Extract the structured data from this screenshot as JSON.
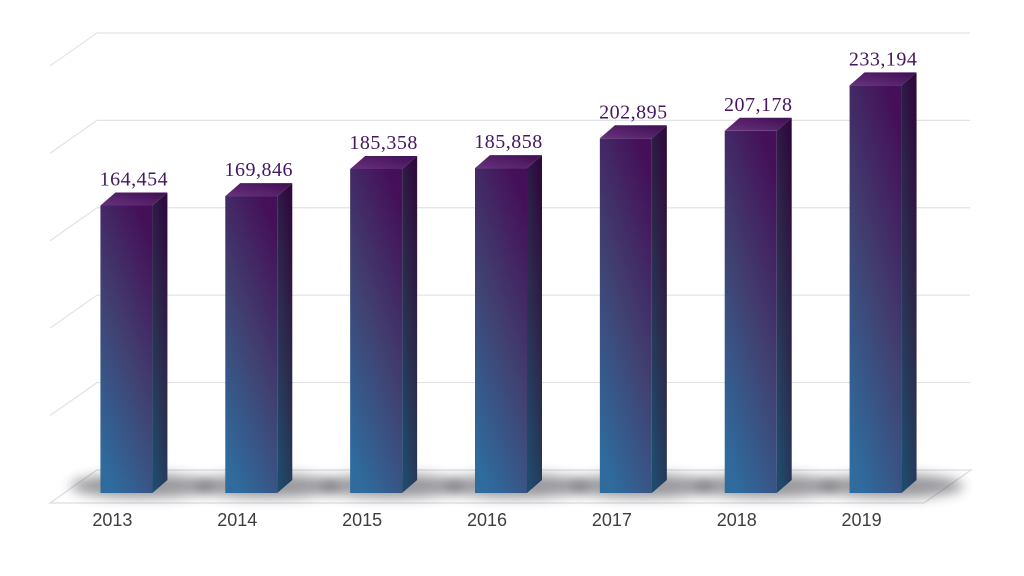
{
  "chart_data": {
    "type": "bar",
    "projection": "3d-oblique",
    "title": "",
    "xlabel": "",
    "ylabel": "",
    "categories": [
      "2013",
      "2014",
      "2015",
      "2016",
      "2017",
      "2018",
      "2019"
    ],
    "values": [
      164454,
      169846,
      185358,
      185858,
      202895,
      207178,
      233194
    ],
    "value_labels": [
      "164,454",
      "169,846",
      "185,358",
      "185,858",
      "202,895",
      "207,178",
      "233,194"
    ],
    "ylim": [
      0,
      250000
    ],
    "gridline_values": [
      50000,
      100000,
      150000,
      200000,
      250000
    ],
    "grid": true,
    "legend": "none",
    "colors": {
      "background": "#ffffff",
      "bar_front_top": "#451059",
      "bar_front_mid": "#414070",
      "bar_front_bottom": "#2f6b9d",
      "bar_side_top": "#2f0a3d",
      "bar_side_mid": "#2c2b4d",
      "bar_side_bottom": "#204a6c",
      "bar_top_light": "#68327f",
      "bar_top_dark": "#400e52",
      "value_label": "#44175e",
      "axis_label": "#3e3e3e",
      "gridline": "#e0e2e6",
      "floor_line": "#dcdee2",
      "shadow": "#35353c"
    }
  }
}
